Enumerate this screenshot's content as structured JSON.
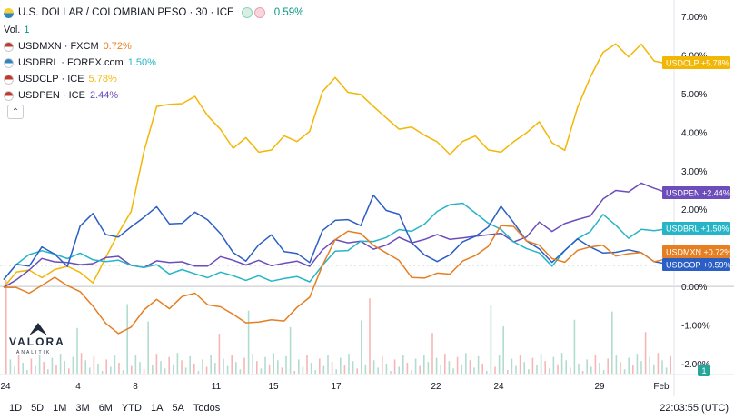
{
  "header": {
    "title": "U.S. DOLLAR / COLOMBIAN PESO · 30 · ICE",
    "change": "0.59%",
    "vol_label": "Vol.",
    "vol_value": "1"
  },
  "legend_items": [
    {
      "symbol": "USDMXN · FXCM",
      "change": "0.72%",
      "color": "#e67e22",
      "flag": "#c0392b"
    },
    {
      "symbol": "USDBRL · FOREX.com",
      "change": "1.50%",
      "color": "#26b5c7",
      "flag": "#2e86c1"
    },
    {
      "symbol": "USDCLP · ICE",
      "change": "5.78%",
      "color": "#f2b705",
      "flag": "#c0392b"
    },
    {
      "symbol": "USDPEN · ICE",
      "change": "2.44%",
      "color": "#6c4dba",
      "flag": "#c0392b"
    }
  ],
  "bottom_bar": {
    "ranges": [
      "1D",
      "5D",
      "1M",
      "3M",
      "6M",
      "YTD",
      "1A",
      "5A",
      "Todos"
    ],
    "time": "22:03:55 (UTC)"
  },
  "logo": {
    "name": "VALORA",
    "sub": "ANALITIK"
  },
  "volume_badge": "1",
  "chart_data": {
    "type": "line",
    "x_ticks": [
      "24",
      "4",
      "8",
      "11",
      "15",
      "17",
      "22",
      "24",
      "29",
      "Feb"
    ],
    "y_ticks": [
      "7.00%",
      "6.00%",
      "5.00%",
      "4.00%",
      "3.00%",
      "2.00%",
      "1.00%",
      "0.00%",
      "-1.00%",
      "-2.00%"
    ],
    "ylim": [
      -2.0,
      7.0
    ],
    "series": [
      {
        "name": "USDCLP",
        "color": "#f2b705",
        "label": "USDCLP",
        "last": "+5.78%",
        "values": [
          0.0,
          0.3,
          0.5,
          0.2,
          0.4,
          0.6,
          0.3,
          0.1,
          0.8,
          1.3,
          2.0,
          3.5,
          4.6,
          4.8,
          4.7,
          4.9,
          4.5,
          4.0,
          3.6,
          3.9,
          3.4,
          3.6,
          3.9,
          3.7,
          4.1,
          5.0,
          5.4,
          5.1,
          4.9,
          4.7,
          4.4,
          4.0,
          4.2,
          3.9,
          3.7,
          3.5,
          3.7,
          3.9,
          3.6,
          3.4,
          3.8,
          4.0,
          4.2,
          3.8,
          3.5,
          4.6,
          5.5,
          6.0,
          6.3,
          6.0,
          6.2,
          5.9,
          5.78
        ]
      },
      {
        "name": "USDPEN",
        "color": "#6c4dba",
        "label": "USDPEN",
        "last": "+2.44%",
        "values": [
          0.0,
          0.1,
          0.5,
          0.7,
          0.6,
          0.7,
          0.5,
          0.6,
          0.8,
          0.7,
          0.6,
          0.5,
          0.6,
          0.7,
          0.6,
          0.5,
          0.6,
          0.7,
          0.7,
          0.6,
          0.6,
          0.6,
          0.6,
          0.6,
          0.6,
          0.9,
          1.2,
          1.2,
          1.1,
          1.0,
          1.1,
          1.2,
          1.2,
          1.2,
          1.3,
          1.3,
          1.2,
          1.3,
          1.4,
          1.3,
          1.2,
          1.3,
          1.6,
          1.5,
          1.6,
          1.7,
          1.9,
          2.2,
          2.5,
          2.5,
          2.6,
          2.6,
          2.44
        ]
      },
      {
        "name": "USDBRL",
        "color": "#26b5c7",
        "label": "USDBRL",
        "last": "+1.50%",
        "values": [
          0.2,
          0.5,
          0.9,
          0.9,
          0.8,
          0.8,
          0.8,
          0.7,
          0.7,
          0.6,
          0.6,
          0.5,
          0.5,
          0.4,
          0.4,
          0.3,
          0.3,
          0.3,
          0.3,
          0.2,
          0.2,
          0.2,
          0.2,
          0.2,
          0.2,
          0.5,
          0.9,
          1.0,
          1.1,
          1.2,
          1.3,
          1.4,
          1.5,
          1.6,
          1.9,
          2.2,
          2.1,
          1.9,
          1.7,
          1.4,
          1.2,
          1.0,
          0.8,
          0.6,
          0.9,
          1.2,
          1.5,
          1.8,
          1.6,
          1.3,
          1.4,
          1.5,
          1.5
        ]
      },
      {
        "name": "USDCOP",
        "color": "#2b5fc5",
        "label": "USDCOP",
        "last": "+0.59%",
        "values": [
          0.2,
          0.5,
          0.6,
          1.0,
          0.8,
          0.6,
          1.5,
          1.9,
          1.4,
          1.2,
          1.6,
          1.8,
          2.0,
          1.7,
          1.6,
          1.9,
          1.8,
          1.3,
          0.9,
          0.7,
          1.0,
          1.4,
          0.9,
          0.8,
          0.7,
          1.4,
          1.7,
          1.8,
          1.5,
          2.4,
          2.0,
          1.8,
          1.2,
          0.8,
          0.6,
          0.9,
          1.1,
          1.3,
          1.6,
          2.0,
          1.7,
          1.2,
          0.9,
          0.7,
          0.9,
          1.2,
          1.1,
          0.8,
          0.9,
          1.0,
          0.8,
          0.7,
          0.59
        ]
      },
      {
        "name": "USDMXN",
        "color": "#e67e22",
        "label": "USDMXN",
        "last": "+0.72%",
        "values": [
          0.0,
          -0.1,
          -0.1,
          0.0,
          0.2,
          0.1,
          -0.2,
          -0.5,
          -0.9,
          -1.3,
          -1.0,
          -0.6,
          -0.4,
          -0.5,
          -0.3,
          -0.2,
          -0.4,
          -0.6,
          -0.7,
          -0.9,
          -1.0,
          -0.8,
          -0.9,
          -0.6,
          -0.2,
          0.5,
          1.2,
          1.5,
          1.3,
          1.1,
          0.9,
          0.6,
          0.3,
          0.2,
          0.3,
          0.4,
          0.6,
          0.8,
          1.1,
          1.5,
          1.6,
          1.2,
          1.0,
          0.8,
          0.6,
          0.9,
          1.1,
          1.0,
          0.8,
          0.9,
          0.8,
          0.7,
          0.72
        ]
      }
    ]
  }
}
